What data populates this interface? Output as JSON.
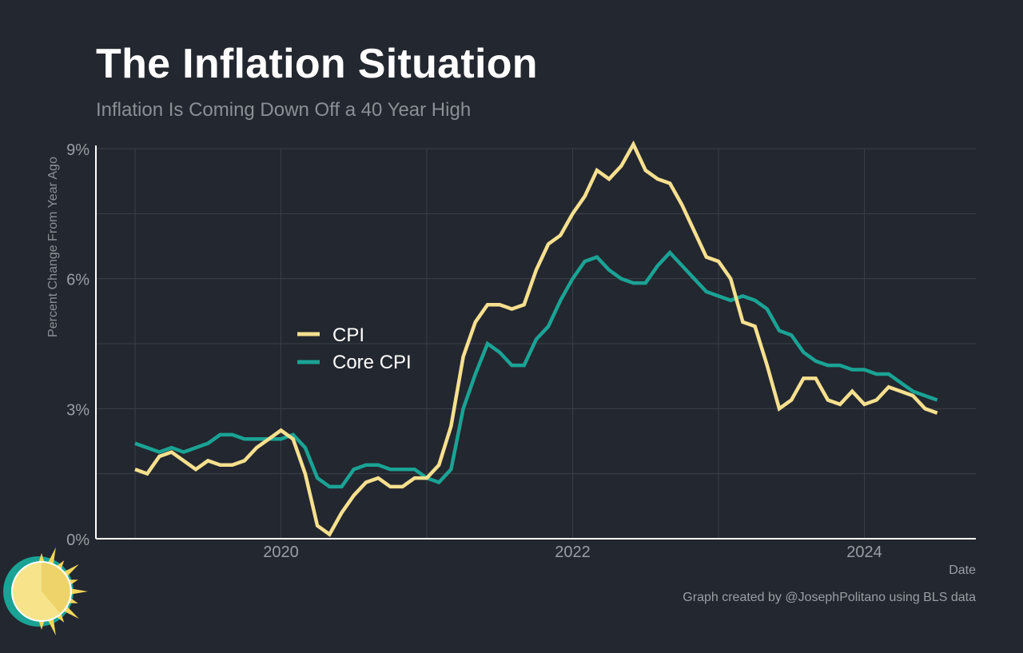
{
  "header": {
    "title": "The Inflation Situation",
    "subtitle": "Inflation Is Coming Down Off a 40 Year High"
  },
  "footer": {
    "credit": "Graph created by @JosephPolitano using BLS data"
  },
  "logo": {
    "icon": "sun-icon"
  },
  "colors": {
    "background": "#23272f",
    "cpi": "#f6e08f",
    "core_cpi": "#1aa395",
    "grid": "#3b4048",
    "axis": "#ffffff"
  },
  "chart_data": {
    "type": "line",
    "title": "The Inflation Situation",
    "subtitle": "Inflation Is Coming Down Off a 40 Year High",
    "xlabel": "Date",
    "ylabel": "Percent Change From Year Ago",
    "ylim": [
      0,
      9
    ],
    "yticks": [
      0,
      3,
      6,
      9
    ],
    "ytick_labels": [
      "0%",
      "3%",
      "6%",
      "9%"
    ],
    "xticks": [
      "2020",
      "2022",
      "2024"
    ],
    "grid": true,
    "legend": {
      "position": "center-left",
      "entries": [
        "CPI",
        "Core CPI"
      ]
    },
    "x_start": "2019-01",
    "x_end": "2024-07",
    "x_frequency": "monthly",
    "series": [
      {
        "name": "CPI",
        "values": [
          1.6,
          1.5,
          1.9,
          2.0,
          1.8,
          1.6,
          1.8,
          1.7,
          1.7,
          1.8,
          2.1,
          2.3,
          2.5,
          2.3,
          1.5,
          0.3,
          0.1,
          0.6,
          1.0,
          1.3,
          1.4,
          1.2,
          1.2,
          1.4,
          1.4,
          1.7,
          2.6,
          4.2,
          5.0,
          5.4,
          5.4,
          5.3,
          5.4,
          6.2,
          6.8,
          7.0,
          7.5,
          7.9,
          8.5,
          8.3,
          8.6,
          9.1,
          8.5,
          8.3,
          8.2,
          7.7,
          7.1,
          6.5,
          6.4,
          6.0,
          5.0,
          4.9,
          4.0,
          3.0,
          3.2,
          3.7,
          3.7,
          3.2,
          3.1,
          3.4,
          3.1,
          3.2,
          3.5,
          3.4,
          3.3,
          3.0,
          2.9
        ]
      },
      {
        "name": "Core CPI",
        "values": [
          2.2,
          2.1,
          2.0,
          2.1,
          2.0,
          2.1,
          2.2,
          2.4,
          2.4,
          2.3,
          2.3,
          2.3,
          2.3,
          2.4,
          2.1,
          1.4,
          1.2,
          1.2,
          1.6,
          1.7,
          1.7,
          1.6,
          1.6,
          1.6,
          1.4,
          1.3,
          1.6,
          3.0,
          3.8,
          4.5,
          4.3,
          4.0,
          4.0,
          4.6,
          4.9,
          5.5,
          6.0,
          6.4,
          6.5,
          6.2,
          6.0,
          5.9,
          5.9,
          6.3,
          6.6,
          6.3,
          6.0,
          5.7,
          5.6,
          5.5,
          5.6,
          5.5,
          5.3,
          4.8,
          4.7,
          4.3,
          4.1,
          4.0,
          4.0,
          3.9,
          3.9,
          3.8,
          3.8,
          3.6,
          3.4,
          3.3,
          3.2
        ]
      }
    ]
  }
}
